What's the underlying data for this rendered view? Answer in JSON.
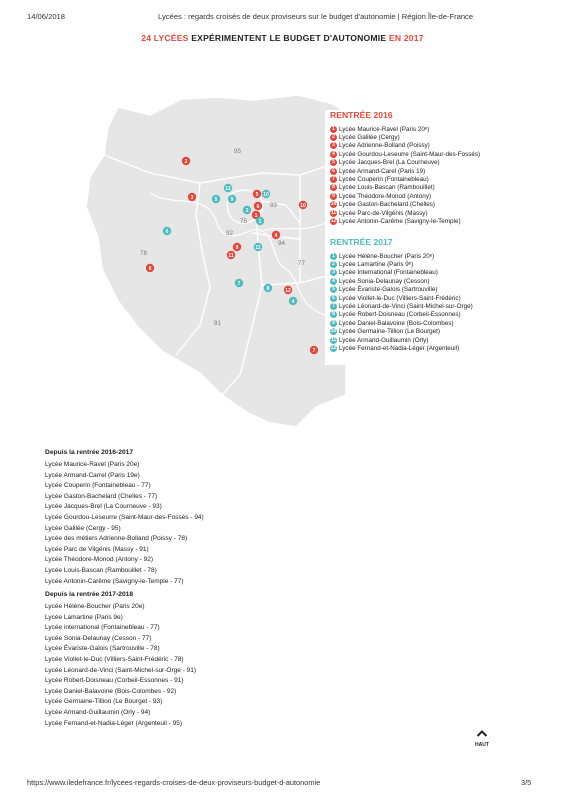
{
  "header": {
    "date": "14/06/2018",
    "title": "Lycées : regards croisés de deux proviseurs sur le budget d'autonomie | Région Île-de-France"
  },
  "infographic": {
    "title_part1": "24 LYCÉES",
    "title_part2": "EXPÉRIMENTENT LE BUDGET D'AUTONOMIE",
    "title_part3": "EN 2017",
    "colors": {
      "red": "#e2483b",
      "teal": "#4fbbbf",
      "map_fill": "#e6e6e6"
    },
    "departments": [
      "95",
      "78",
      "93",
      "75",
      "92",
      "94",
      "77",
      "91"
    ],
    "rentree2016": {
      "heading": "RENTRÉE 2016",
      "items": [
        {
          "n": "1",
          "label": "Lycée Maurice-Ravel (Paris 20ᵉ)"
        },
        {
          "n": "2",
          "label": "Lycée Galilée (Cergy)"
        },
        {
          "n": "3",
          "label": "Lycée Adrienne-Bolland (Poissy)"
        },
        {
          "n": "4",
          "label": "Lycée Gourdou-Leseurre (Saint-Maur-des-Fossés)"
        },
        {
          "n": "5",
          "label": "Lycée Jacques-Brel (La Courneuve)"
        },
        {
          "n": "6",
          "label": "Lycée Armand-Carel (Paris 19)"
        },
        {
          "n": "7",
          "label": "Lycée Couperin (Fontainebleau)"
        },
        {
          "n": "8",
          "label": "Lycée Louis-Bascan (Rambouillet)"
        },
        {
          "n": "9",
          "label": "Lycée Théodore-Monod (Antony)"
        },
        {
          "n": "10",
          "label": "Lycée Gaston-Bachelard (Chelles)"
        },
        {
          "n": "11",
          "label": "Lycée Parc-de-Vilgénis (Massy)"
        },
        {
          "n": "12",
          "label": "Lycée Antonin-Carême (Savigny-le-Temple)"
        }
      ]
    },
    "rentree2017": {
      "heading": "RENTRÉE 2017",
      "items": [
        {
          "n": "1",
          "label": "Lycée Hélène-Boucher (Paris 20ᵉ)"
        },
        {
          "n": "2",
          "label": "Lycée Lamartine (Paris 9ᵉ)"
        },
        {
          "n": "3",
          "label": "Lycée International (Fontainebleau)"
        },
        {
          "n": "4",
          "label": "Lycée Sonia-Delaunay (Cesson)"
        },
        {
          "n": "5",
          "label": "Lycée Évariste-Galois (Sartrouville)"
        },
        {
          "n": "6",
          "label": "Lycée Viollet-le-Duc (Villiers-Saint-Frédéric)"
        },
        {
          "n": "7",
          "label": "Lycée Léonard-de-Vinci (Saint-Michel-sur-Orge)"
        },
        {
          "n": "8",
          "label": "Lycée Robert-Doisneau (Corbeil-Essonnes)"
        },
        {
          "n": "9",
          "label": "Lycée Daniel-Balavoine (Bois-Colombes)"
        },
        {
          "n": "10",
          "label": "Lycée Germaine-Tillion (Le Bourget)"
        },
        {
          "n": "11",
          "label": "Lycée Armand-Guillaumin (Orly)"
        },
        {
          "n": "12",
          "label": "Lycée Fernand-et-Nadia-Léger (Argenteuil)"
        }
      ]
    }
  },
  "list2016": {
    "heading": "Depuis la rentrée 2016-2017",
    "items": [
      "Lycée Maurice-Ravel (Paris 20e)",
      "Lycée Armand-Carrel (Paris 19e)",
      "Lycée Couperin (Fontainebleau - 77)",
      "Lycée Gaston-Bachelard (Chelles - 77)",
      "Lycée Jacques-Brel (La Courneuve - 93)",
      "Lycée Gourdou-Leseurre (Saint-Maur-des-Fossés - 94)",
      "Lycée Galilée (Cergy - 95)",
      "Lycée des métiers Adrienne-Bolland (Poissy - 78)",
      "Lycée Parc de Vilgénis (Massy - 91)",
      "Lycée Théodore-Monod (Antony - 92)",
      "Lycée Louis-Bascan (Rambouillet - 78)",
      "Lycée Antonin-Carême (Savigny-le-Temple - 77)"
    ]
  },
  "list2017": {
    "heading": "Depuis la rentrée 2017-2018",
    "items": [
      "Lycée Hélène-Boucher (Paris 20e)",
      "Lycée Lamartine (Paris 9e)",
      "Lycée international (Fontainebleau - 77)",
      "Lycée Sonia-Delaunay (Cesson - 77)",
      "Lycée Évariste-Galois (Sartrouville - 78)",
      "Lycée Viollet-le-Duc (Villiers-Saint-Frédéric - 78)",
      "Lycée Léonard-de-Vinci (Saint-Michel-sur-Orge - 91)",
      "Lycée Robert-Doisneau (Corbeil-Essonnes - 91)",
      "Lycée Daniel-Balavoine (Bois-Colombes - 92)",
      "Lycée Germaine-Tillion (Le Bourget - 93)",
      "Lycée Armand-Guillaumin (Orly - 94)",
      "Lycée Fernand-et-Nadia-Léger (Argenteuil - 95)"
    ]
  },
  "back_to_top": {
    "label": "HAUT",
    "icon": "chevron-up-icon"
  },
  "footer": {
    "url": "https://www.iledefrance.fr/lycees-regards-croises-de-deux-proviseurs-budget-d-autonomie",
    "page": "3/5"
  }
}
